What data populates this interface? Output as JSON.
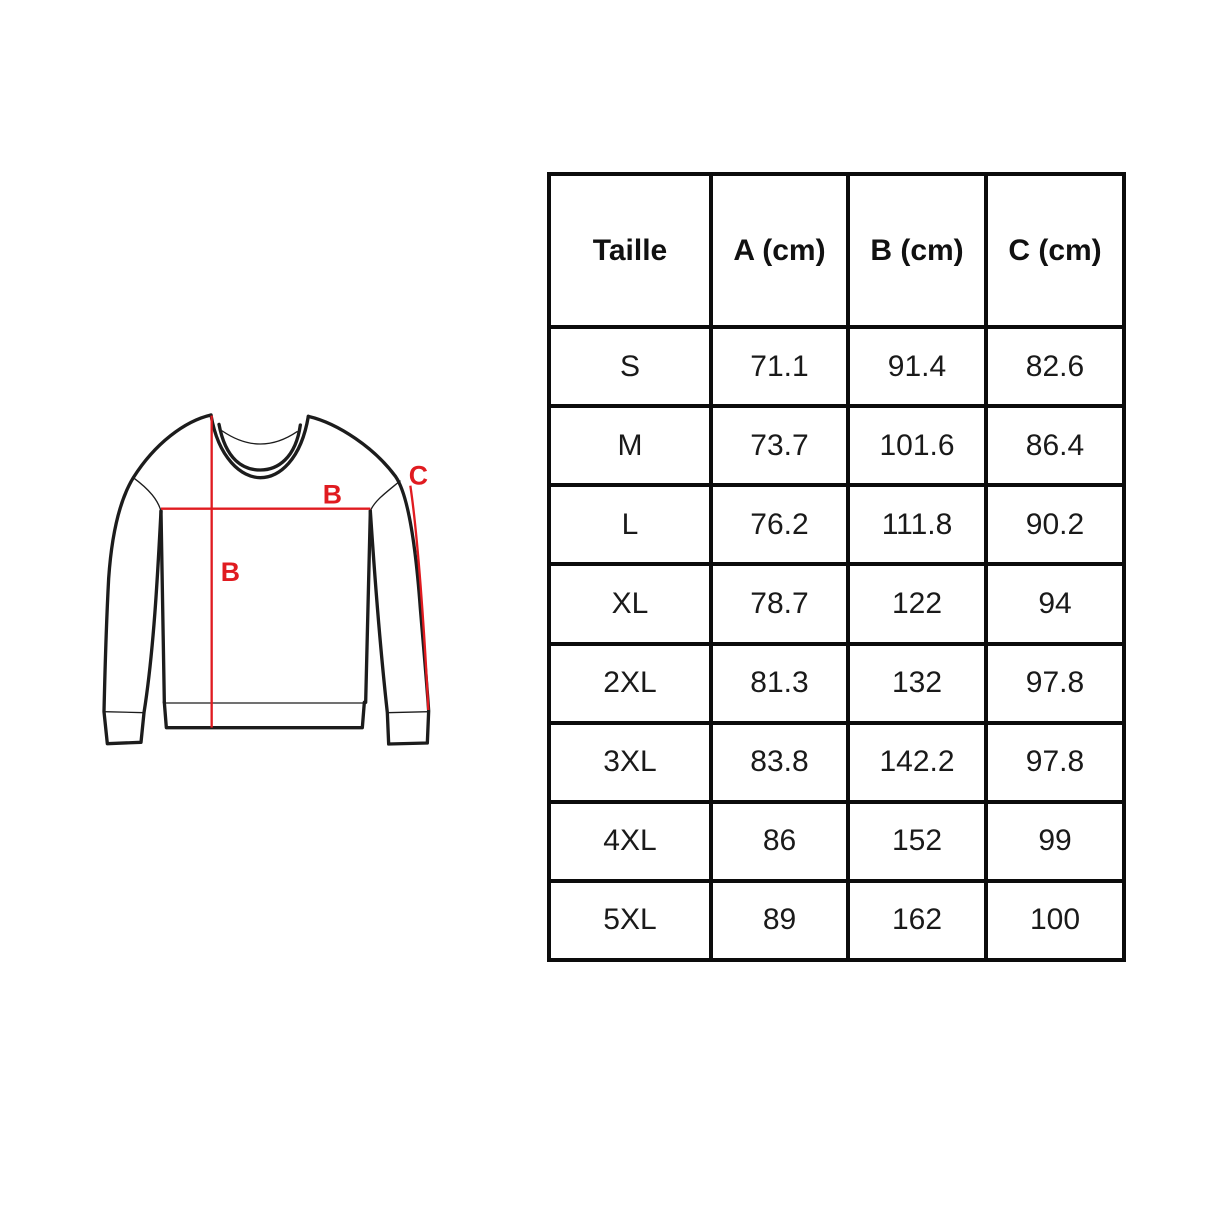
{
  "page": {
    "background": "#ffffff"
  },
  "colors": {
    "accent_red": "#e01b20",
    "line_black": "#1c1c1c",
    "border_black": "#0c0c0c"
  },
  "diagram": {
    "name": "sweatshirt-measurement-diagram",
    "labels": {
      "chest_b": "B",
      "length_b": "B",
      "sleeve_c": "C"
    }
  },
  "chart_data": {
    "type": "table",
    "columns": [
      "Taille",
      "A (cm)",
      "B (cm)",
      "C (cm)"
    ],
    "rows": [
      [
        "S",
        "71.1",
        "91.4",
        "82.6"
      ],
      [
        "M",
        "73.7",
        "101.6",
        "86.4"
      ],
      [
        "L",
        "76.2",
        "111.8",
        "90.2"
      ],
      [
        "XL",
        "78.7",
        "122",
        "94"
      ],
      [
        "2XL",
        "81.3",
        "132",
        "97.8"
      ],
      [
        "3XL",
        "83.8",
        "142.2",
        "97.8"
      ],
      [
        "4XL",
        "86",
        "152",
        "99"
      ],
      [
        "5XL",
        "89",
        "162",
        "100"
      ]
    ]
  }
}
